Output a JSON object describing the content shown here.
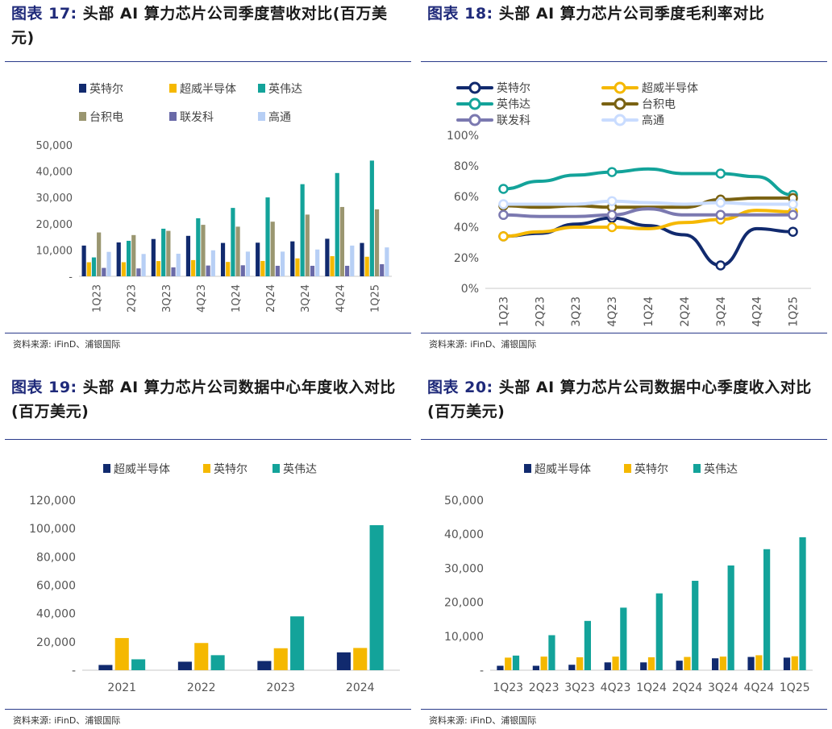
{
  "colors": {
    "navy": "#112a6e",
    "gold": "#f5b800",
    "teal": "#13a39a",
    "olive": "#9a9670",
    "purple": "#6a6aa8",
    "lightblue": "#b7cff5",
    "brown": "#7a6212",
    "lavender": "#7b79b0",
    "paleblue": "#c9dcff"
  },
  "panels": [
    {
      "title_prefix": "图表 17:",
      "title_rest": "头部 AI 算力芯片公司季度营收对比(百万美元)",
      "source": "资料来源: iFinD、浦银国际"
    },
    {
      "title_prefix": "图表 18:",
      "title_rest": "头部 AI 算力芯片公司季度毛利率对比",
      "source": "资料来源: iFinD、浦银国际"
    },
    {
      "title_prefix": "图表 19:",
      "title_rest": "头部 AI 算力芯片公司数据中心年度收入对比(百万美元)",
      "source": "资料来源: iFinD、浦银国际"
    },
    {
      "title_prefix": "图表 20:",
      "title_rest": "头部 AI 算力芯片公司数据中心季度收入对比(百万美元)",
      "source": "资料来源: iFinD、浦银国际"
    }
  ],
  "chart_data": [
    {
      "type": "bar",
      "categories": [
        "1Q23",
        "2Q23",
        "3Q23",
        "4Q23",
        "1Q24",
        "2Q24",
        "3Q24",
        "4Q24",
        "1Q25"
      ],
      "ylim": [
        0,
        50000
      ],
      "yticks": [
        "-",
        "10,000",
        "20,000",
        "30,000",
        "40,000",
        "50,000"
      ],
      "legend_position": "top",
      "series": [
        {
          "name": "英特尔",
          "color": "navy",
          "values": [
            11700,
            12900,
            14200,
            15400,
            12700,
            12800,
            13300,
            14300,
            12700
          ]
        },
        {
          "name": "超威半导体",
          "color": "gold",
          "values": [
            5350,
            5360,
            5800,
            6170,
            5470,
            5840,
            6820,
            7660,
            7440
          ]
        },
        {
          "name": "英伟达",
          "color": "teal",
          "values": [
            7190,
            13510,
            18120,
            22100,
            26040,
            30040,
            35080,
            39330,
            44060
          ]
        },
        {
          "name": "台积电",
          "color": "olive",
          "values": [
            16700,
            15700,
            17300,
            19600,
            18900,
            20800,
            23500,
            26400,
            25500
          ]
        },
        {
          "name": "联发科",
          "color": "purple",
          "values": [
            3200,
            3000,
            3400,
            4100,
            4200,
            4000,
            4000,
            4000,
            4600
          ]
        },
        {
          "name": "高通",
          "color": "lightblue",
          "values": [
            9300,
            8500,
            8600,
            9900,
            9400,
            9400,
            10200,
            11700,
            11000
          ]
        }
      ]
    },
    {
      "type": "line",
      "categories": [
        "1Q23",
        "2Q23",
        "3Q23",
        "4Q23",
        "1Q24",
        "2Q24",
        "3Q24",
        "4Q24",
        "1Q25"
      ],
      "ylim": [
        0,
        100
      ],
      "yticks": [
        "0%",
        "20%",
        "40%",
        "60%",
        "80%",
        "100%"
      ],
      "legend_position": "top",
      "series": [
        {
          "name": "英特尔",
          "color": "navy",
          "values": [
            34,
            36,
            42,
            46,
            41,
            35,
            15,
            39,
            37
          ]
        },
        {
          "name": "超威半导体",
          "color": "gold",
          "values": [
            34,
            37,
            40,
            40,
            39,
            43,
            45,
            51,
            50
          ]
        },
        {
          "name": "英伟达",
          "color": "teal",
          "values": [
            65,
            70,
            74,
            76,
            78,
            75,
            75,
            73,
            61
          ]
        },
        {
          "name": "台积电",
          "color": "brown",
          "values": [
            54,
            53,
            54,
            53,
            53,
            53,
            58,
            59,
            59
          ]
        },
        {
          "name": "联发科",
          "color": "lavender",
          "values": [
            48,
            47,
            47,
            48,
            52,
            48,
            48,
            48,
            48
          ]
        },
        {
          "name": "高通",
          "color": "paleblue",
          "values": [
            55,
            55,
            55,
            57,
            56,
            55,
            56,
            55,
            55
          ]
        }
      ]
    },
    {
      "type": "bar",
      "categories": [
        "2021",
        "2022",
        "2023",
        "2024"
      ],
      "ylim": [
        0,
        120000
      ],
      "yticks": [
        "-",
        "20,000",
        "40,000",
        "60,000",
        "80,000",
        "100,000",
        "120,000"
      ],
      "legend_position": "top",
      "series": [
        {
          "name": "超威半导体",
          "color": "navy",
          "values": [
            3700,
            6000,
            6500,
            12600
          ]
        },
        {
          "name": "英特尔",
          "color": "gold",
          "values": [
            22700,
            19200,
            15500,
            15700
          ]
        },
        {
          "name": "英伟达",
          "color": "teal",
          "values": [
            7700,
            10600,
            38000,
            102400
          ]
        }
      ]
    },
    {
      "type": "bar",
      "categories": [
        "1Q23",
        "2Q23",
        "3Q23",
        "4Q23",
        "1Q24",
        "2Q24",
        "3Q24",
        "4Q24",
        "1Q25"
      ],
      "ylim": [
        0,
        50000
      ],
      "yticks": [
        "-",
        "10,000",
        "20,000",
        "30,000",
        "40,000",
        "50,000"
      ],
      "legend_position": "top",
      "series": [
        {
          "name": "超威半导体",
          "color": "navy",
          "values": [
            1300,
            1300,
            1600,
            2300,
            2300,
            2800,
            3500,
            3900,
            3700
          ]
        },
        {
          "name": "英特尔",
          "color": "gold",
          "values": [
            3700,
            4000,
            3800,
            4000,
            3800,
            3900,
            4000,
            4400,
            4100
          ]
        },
        {
          "name": "英伟达",
          "color": "teal",
          "values": [
            4300,
            10300,
            14500,
            18400,
            22600,
            26300,
            30800,
            35600,
            39100
          ]
        }
      ]
    }
  ]
}
